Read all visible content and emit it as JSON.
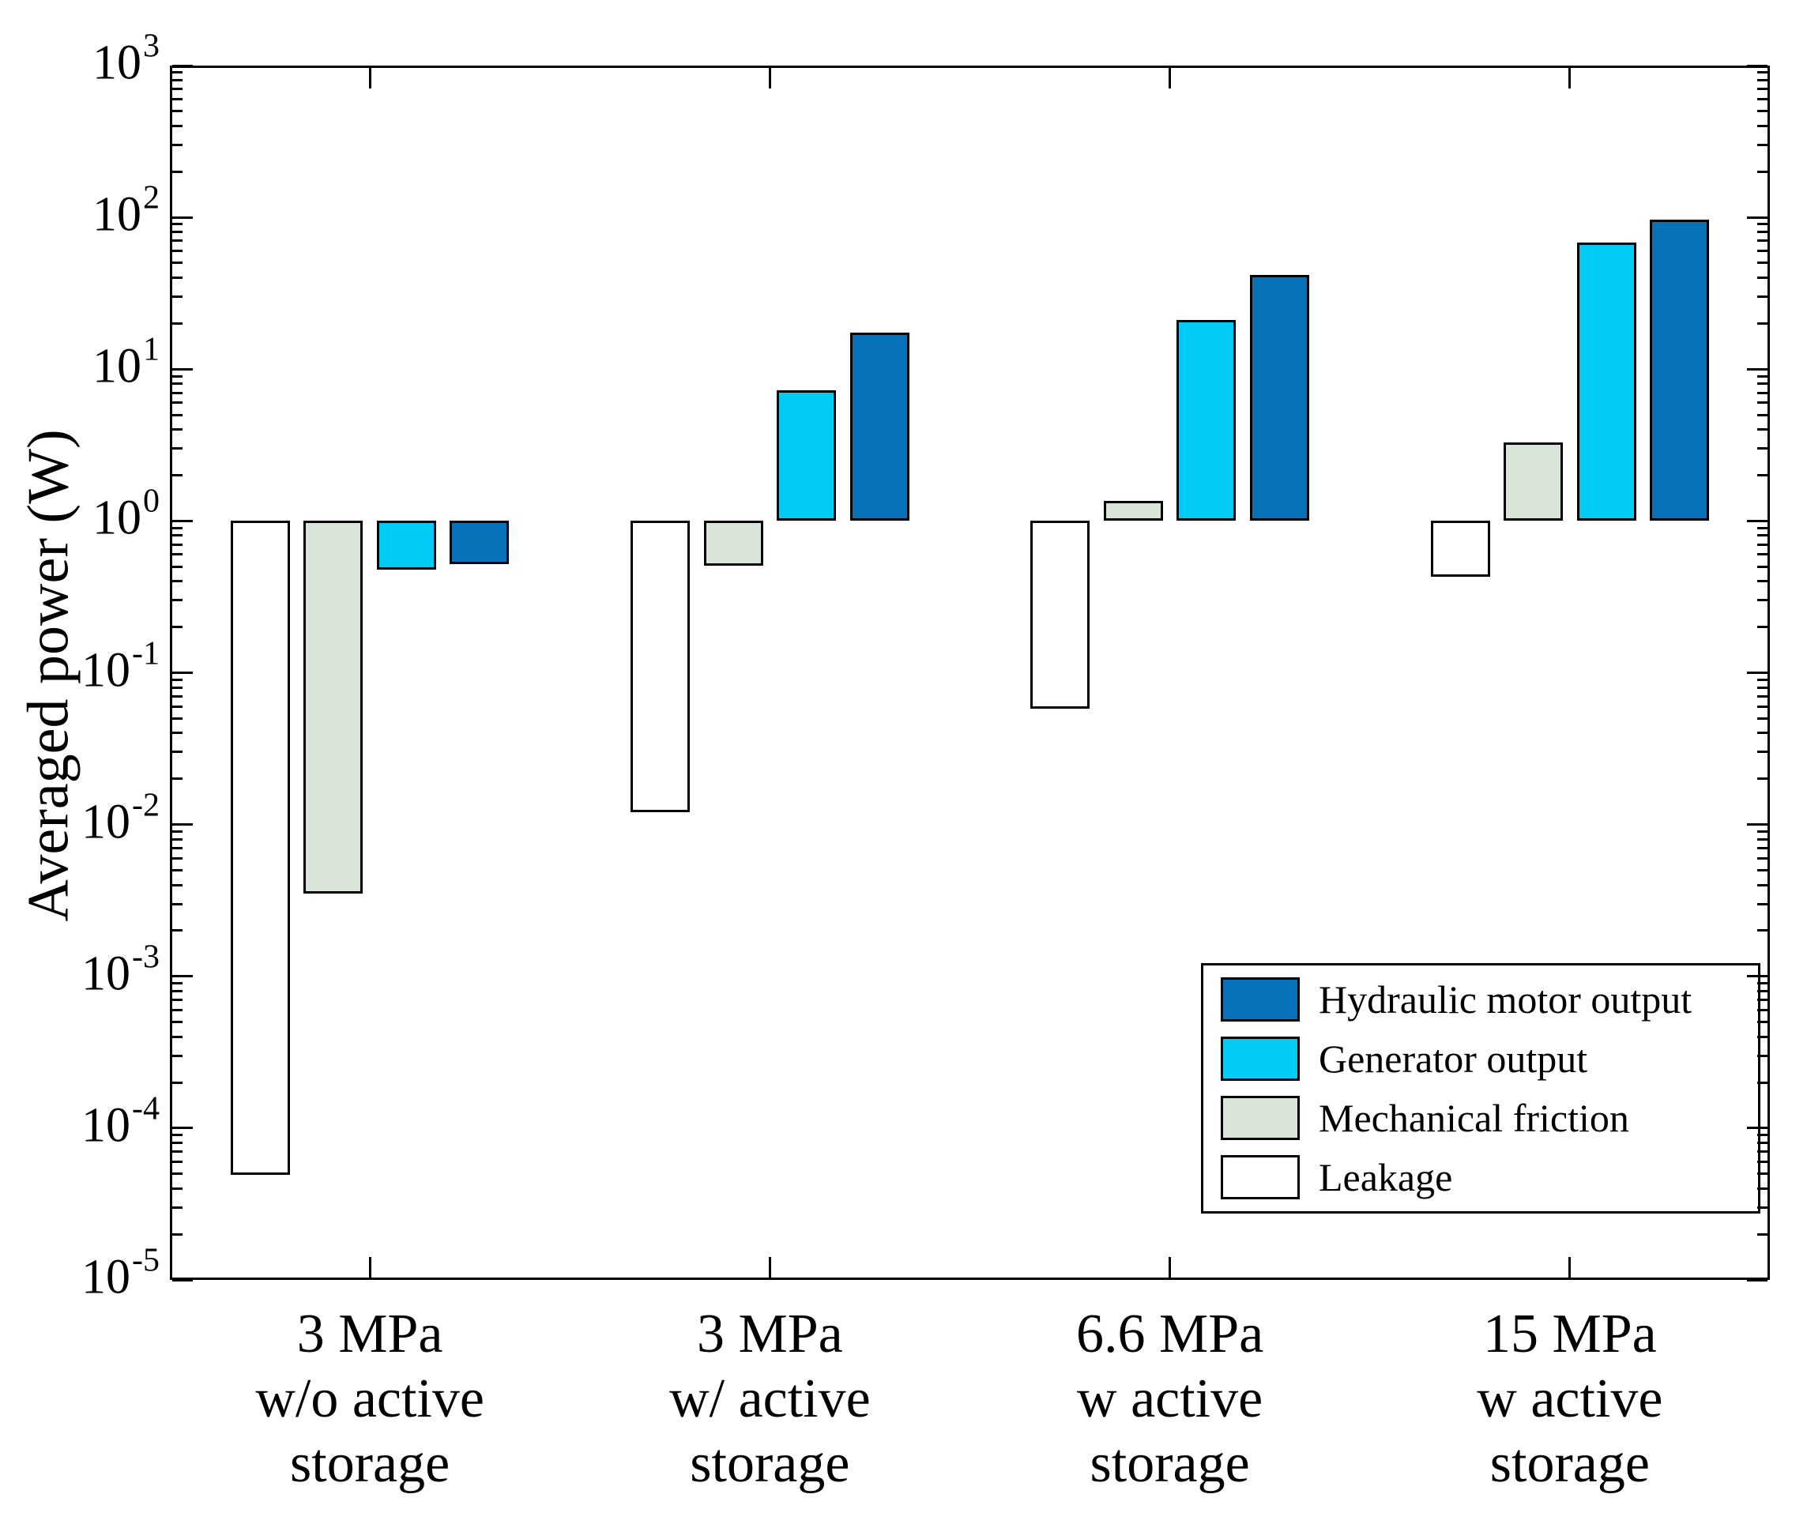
{
  "chart_data": {
    "type": "bar",
    "scale": "log",
    "title": "",
    "xlabel": "",
    "ylabel": "Averaged power (W)",
    "ylim": [
      1e-05,
      1000.0
    ],
    "baseline": 1,
    "grid": false,
    "legend_position": "lower right",
    "y_tick_base": "10",
    "y_tick_exponents": [
      3,
      2,
      1,
      0,
      -1,
      -2,
      -3,
      -4,
      -5
    ],
    "categories": [
      [
        "3 MPa",
        "w/o active",
        "storage"
      ],
      [
        "3 MPa",
        "w/ active",
        "storage"
      ],
      [
        "6.6 MPa",
        "w active",
        "storage"
      ],
      [
        "15 MPa",
        "w active",
        "storage"
      ]
    ],
    "series": [
      {
        "name": "Hydraulic motor output",
        "color": "#0772BA",
        "values": [
          0.52,
          17.5,
          42,
          97
        ]
      },
      {
        "name": "Generator output",
        "color": "#00CBF5",
        "values": [
          0.48,
          7.3,
          21,
          68
        ]
      },
      {
        "name": "Mechanical friction",
        "color": "#D8E5D8",
        "values": [
          0.0035,
          0.51,
          1.35,
          3.3
        ]
      },
      {
        "name": "Leakage",
        "color": "#FFFFFF",
        "values": [
          4.9e-05,
          0.012,
          0.058,
          0.43
        ]
      }
    ],
    "bar_order_left_to_right": [
      "Leakage",
      "Mechanical friction",
      "Generator output",
      "Hydraulic motor output"
    ],
    "edge_color": "#000000",
    "background_color": "#FFFFFF"
  }
}
